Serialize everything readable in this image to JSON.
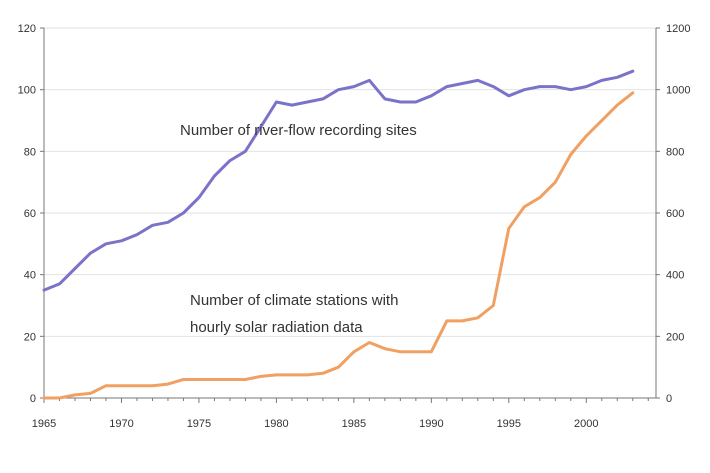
{
  "chart_data": {
    "type": "line",
    "title": "",
    "xlabel": "",
    "ylabel_left": "",
    "ylabel_right": "",
    "x_ticks": [
      "1965",
      "1970",
      "1975",
      "1980",
      "1985",
      "1990",
      "1995",
      "2000"
    ],
    "left_axis": {
      "ylim": [
        0,
        120
      ],
      "ticks": [
        "0",
        "20",
        "40",
        "60",
        "80",
        "100",
        "120"
      ]
    },
    "right_axis": {
      "ylim": [
        0,
        1200
      ],
      "ticks": [
        "0",
        "200",
        "400",
        "600",
        "800",
        "1000",
        "1200"
      ]
    },
    "grid": "horizontal",
    "series": [
      {
        "name": "Number of river-flow recording sites",
        "axis": "left",
        "color": "#7b73c9",
        "points": [
          [
            1965,
            35
          ],
          [
            1966,
            37
          ],
          [
            1967,
            42
          ],
          [
            1968,
            47
          ],
          [
            1969,
            50
          ],
          [
            1970,
            51
          ],
          [
            1971,
            53
          ],
          [
            1972,
            56
          ],
          [
            1973,
            57
          ],
          [
            1974,
            60
          ],
          [
            1975,
            65
          ],
          [
            1976,
            72
          ],
          [
            1977,
            77
          ],
          [
            1978,
            80
          ],
          [
            1979,
            88
          ],
          [
            1980,
            96
          ],
          [
            1981,
            95
          ],
          [
            1982,
            96
          ],
          [
            1983,
            97
          ],
          [
            1984,
            100
          ],
          [
            1985,
            101
          ],
          [
            1986,
            103
          ],
          [
            1987,
            97
          ],
          [
            1988,
            96
          ],
          [
            1989,
            96
          ],
          [
            1990,
            98
          ],
          [
            1991,
            101
          ],
          [
            1992,
            102
          ],
          [
            1993,
            103
          ],
          [
            1994,
            101
          ],
          [
            1995,
            98
          ],
          [
            1996,
            100
          ],
          [
            1997,
            101
          ],
          [
            1998,
            101
          ],
          [
            1999,
            100
          ],
          [
            2000,
            101
          ],
          [
            2001,
            103
          ],
          [
            2002,
            104
          ],
          [
            2003,
            106
          ]
        ]
      },
      {
        "name": "Number of climate stations with hourly solar radiation data",
        "axis": "right",
        "color": "#f0a062",
        "points": [
          [
            1965,
            0
          ],
          [
            1966,
            0
          ],
          [
            1967,
            10
          ],
          [
            1968,
            15
          ],
          [
            1969,
            40
          ],
          [
            1970,
            40
          ],
          [
            1971,
            40
          ],
          [
            1972,
            40
          ],
          [
            1973,
            45
          ],
          [
            1974,
            60
          ],
          [
            1975,
            60
          ],
          [
            1976,
            60
          ],
          [
            1977,
            60
          ],
          [
            1978,
            60
          ],
          [
            1979,
            70
          ],
          [
            1980,
            75
          ],
          [
            1981,
            75
          ],
          [
            1982,
            75
          ],
          [
            1983,
            80
          ],
          [
            1984,
            100
          ],
          [
            1985,
            150
          ],
          [
            1986,
            180
          ],
          [
            1987,
            160
          ],
          [
            1988,
            150
          ],
          [
            1989,
            150
          ],
          [
            1990,
            150
          ],
          [
            1991,
            250
          ],
          [
            1992,
            250
          ],
          [
            1993,
            260
          ],
          [
            1994,
            300
          ],
          [
            1995,
            550
          ],
          [
            1996,
            620
          ],
          [
            1997,
            650
          ],
          [
            1998,
            700
          ],
          [
            1999,
            790
          ],
          [
            2000,
            850
          ],
          [
            2001,
            900
          ],
          [
            2002,
            950
          ],
          [
            2003,
            990
          ]
        ]
      }
    ],
    "annotations": [
      {
        "text": "Number of river-flow recording sites"
      },
      {
        "text": "Number of climate stations with"
      },
      {
        "text": "hourly solar radiation data"
      }
    ]
  }
}
